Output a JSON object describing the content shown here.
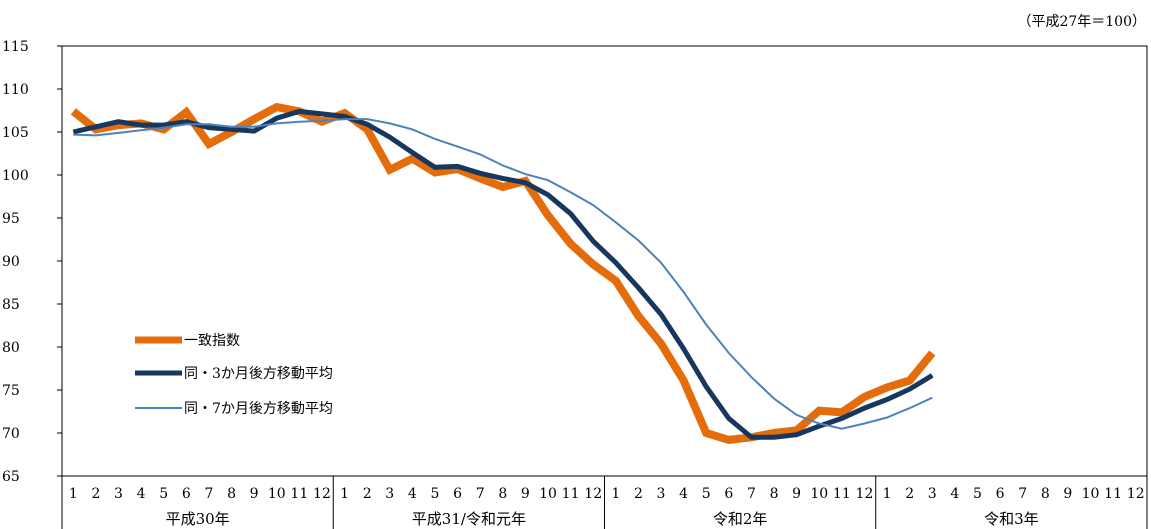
{
  "chart_data": {
    "type": "line",
    "unit_note": "（平成27年＝100）",
    "ylim": [
      65,
      115
    ],
    "yticks": [
      115,
      110,
      105,
      100,
      95,
      90,
      85,
      80,
      75,
      70,
      65
    ],
    "grid": false,
    "legend_position": "bottom-left",
    "month_labels": [
      "1",
      "2",
      "3",
      "4",
      "5",
      "6",
      "7",
      "8",
      "9",
      "10",
      "11",
      "12"
    ],
    "years": [
      "平成30年",
      "平成31/令和元年",
      "令和2年",
      "令和3年"
    ],
    "series": [
      {
        "name": "一致指数",
        "color": "#E46C0A",
        "values": [
          107.4,
          105.3,
          105.8,
          106.0,
          105.3,
          107.3,
          103.6,
          105.0,
          106.5,
          107.9,
          107.4,
          106.2,
          107.2,
          105.3,
          100.6,
          101.9,
          100.3,
          100.7,
          99.6,
          98.6,
          99.3,
          95.3,
          92.0,
          89.6,
          87.7,
          83.6,
          80.4,
          76.1,
          70.0,
          69.2,
          69.5,
          70.0,
          70.3,
          72.6,
          72.4,
          74.2,
          75.3,
          76.1,
          79.3
        ]
      },
      {
        "name": "同・3か月後方移動平均",
        "color": "#17375E",
        "values": [
          105.0,
          105.6,
          106.2,
          105.8,
          105.8,
          106.2,
          105.5,
          105.3,
          105.1,
          106.6,
          107.4,
          107.1,
          106.8,
          105.9,
          104.4,
          102.6,
          100.9,
          101.0,
          100.2,
          99.6,
          99.1,
          97.7,
          95.5,
          92.3,
          89.8,
          86.9,
          83.8,
          79.8,
          75.4,
          71.7,
          69.5,
          69.5,
          69.8,
          70.8,
          71.7,
          72.9,
          73.9,
          75.1,
          76.7
        ]
      },
      {
        "name": "同・7か月後方移動平均",
        "color": "#4F81BD",
        "values": [
          104.7,
          104.6,
          104.9,
          105.2,
          105.5,
          105.9,
          105.9,
          105.6,
          105.6,
          106.0,
          106.2,
          106.3,
          106.5,
          106.5,
          106.0,
          105.3,
          104.2,
          103.3,
          102.4,
          101.1,
          100.1,
          99.4,
          98.0,
          96.5,
          94.5,
          92.4,
          89.8,
          86.4,
          82.6,
          79.3,
          76.5,
          74.0,
          72.1,
          71.1,
          70.5,
          71.1,
          71.8,
          72.9,
          74.1
        ]
      }
    ]
  }
}
